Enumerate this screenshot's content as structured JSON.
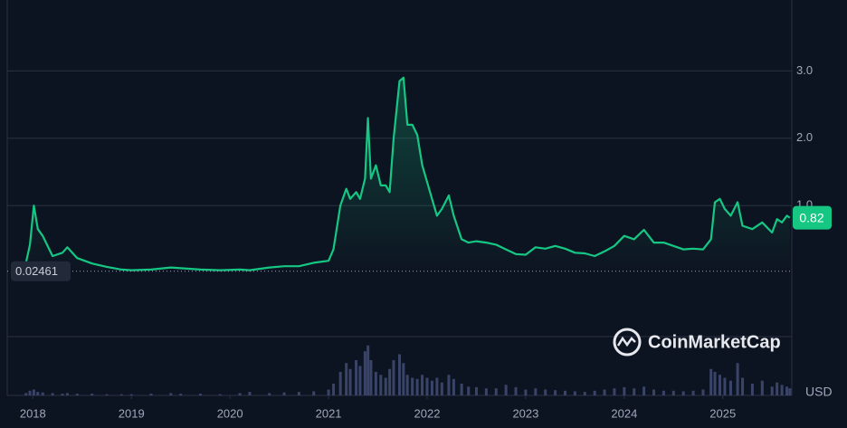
{
  "chart_data": {
    "type": "line",
    "x": [
      2017.93,
      2017.97,
      2018.01,
      2018.05,
      2018.1,
      2018.2,
      2018.3,
      2018.35,
      2018.45,
      2018.6,
      2018.75,
      2018.9,
      2019.0,
      2019.2,
      2019.4,
      2019.5,
      2019.7,
      2019.9,
      2020.1,
      2020.2,
      2020.4,
      2020.55,
      2020.7,
      2020.85,
      2021.0,
      2021.05,
      2021.12,
      2021.18,
      2021.22,
      2021.28,
      2021.32,
      2021.37,
      2021.4,
      2021.43,
      2021.48,
      2021.53,
      2021.58,
      2021.62,
      2021.66,
      2021.72,
      2021.76,
      2021.8,
      2021.85,
      2021.9,
      2021.95,
      2022.0,
      2022.05,
      2022.1,
      2022.15,
      2022.22,
      2022.27,
      2022.35,
      2022.42,
      2022.5,
      2022.6,
      2022.7,
      2022.8,
      2022.9,
      2023.0,
      2023.1,
      2023.2,
      2023.3,
      2023.4,
      2023.5,
      2023.6,
      2023.7,
      2023.8,
      2023.9,
      2024.0,
      2024.1,
      2024.2,
      2024.3,
      2024.4,
      2024.5,
      2024.6,
      2024.7,
      2024.8,
      2024.88,
      2024.92,
      2024.97,
      2025.02,
      2025.08,
      2025.15,
      2025.2,
      2025.3,
      2025.4,
      2025.5,
      2025.55,
      2025.6,
      2025.65,
      2025.68
    ],
    "series": [
      {
        "name": "Price",
        "color": "#16c784",
        "values": [
          0.15,
          0.42,
          1.0,
          0.65,
          0.55,
          0.25,
          0.3,
          0.38,
          0.22,
          0.14,
          0.09,
          0.05,
          0.04,
          0.05,
          0.08,
          0.07,
          0.05,
          0.04,
          0.05,
          0.04,
          0.08,
          0.1,
          0.1,
          0.15,
          0.18,
          0.35,
          1.0,
          1.25,
          1.1,
          1.2,
          1.1,
          1.4,
          2.3,
          1.4,
          1.6,
          1.3,
          1.3,
          1.2,
          2.0,
          2.85,
          2.9,
          2.2,
          2.2,
          2.05,
          1.6,
          1.35,
          1.1,
          0.85,
          0.95,
          1.15,
          0.85,
          0.5,
          0.45,
          0.47,
          0.45,
          0.42,
          0.35,
          0.28,
          0.27,
          0.38,
          0.36,
          0.4,
          0.36,
          0.3,
          0.29,
          0.25,
          0.32,
          0.4,
          0.55,
          0.5,
          0.64,
          0.45,
          0.45,
          0.4,
          0.35,
          0.36,
          0.35,
          0.5,
          1.05,
          1.1,
          0.95,
          0.85,
          1.05,
          0.7,
          0.65,
          0.75,
          0.6,
          0.8,
          0.75,
          0.85,
          0.82
        ]
      },
      {
        "name": "Volume",
        "color": "#3a4468",
        "axis": "y2",
        "values": [
          4,
          8,
          10,
          6,
          5,
          4,
          3,
          4,
          3,
          3,
          2,
          2,
          2,
          3,
          4,
          3,
          3,
          2,
          4,
          6,
          4,
          5,
          6,
          7,
          10,
          20,
          40,
          55,
          45,
          60,
          50,
          75,
          85,
          60,
          40,
          35,
          30,
          45,
          60,
          70,
          55,
          35,
          30,
          28,
          35,
          30,
          25,
          30,
          22,
          35,
          28,
          20,
          15,
          14,
          12,
          12,
          18,
          14,
          10,
          12,
          10,
          9,
          8,
          7,
          6,
          8,
          10,
          12,
          14,
          12,
          15,
          10,
          8,
          8,
          7,
          8,
          10,
          45,
          40,
          35,
          30,
          25,
          55,
          30,
          20,
          25,
          15,
          22,
          18,
          15,
          12
        ]
      }
    ],
    "xlim": [
      2017.74,
      2025.7
    ],
    "xticks": [
      2018,
      2019,
      2020,
      2021,
      2022,
      2023,
      2024,
      2025
    ],
    "ylim": [
      -1,
      4
    ],
    "yticks": [
      {
        "value": 1,
        "label": "1.0"
      },
      {
        "value": 2,
        "label": "2.0"
      },
      {
        "value": 3,
        "label": "3.0"
      }
    ],
    "y2lim": [
      0,
      100
    ],
    "grid": true,
    "reference_value": 0.02461,
    "current_value": 0.82,
    "currency_label": "USD",
    "watermark": "CoinMarketCap"
  }
}
